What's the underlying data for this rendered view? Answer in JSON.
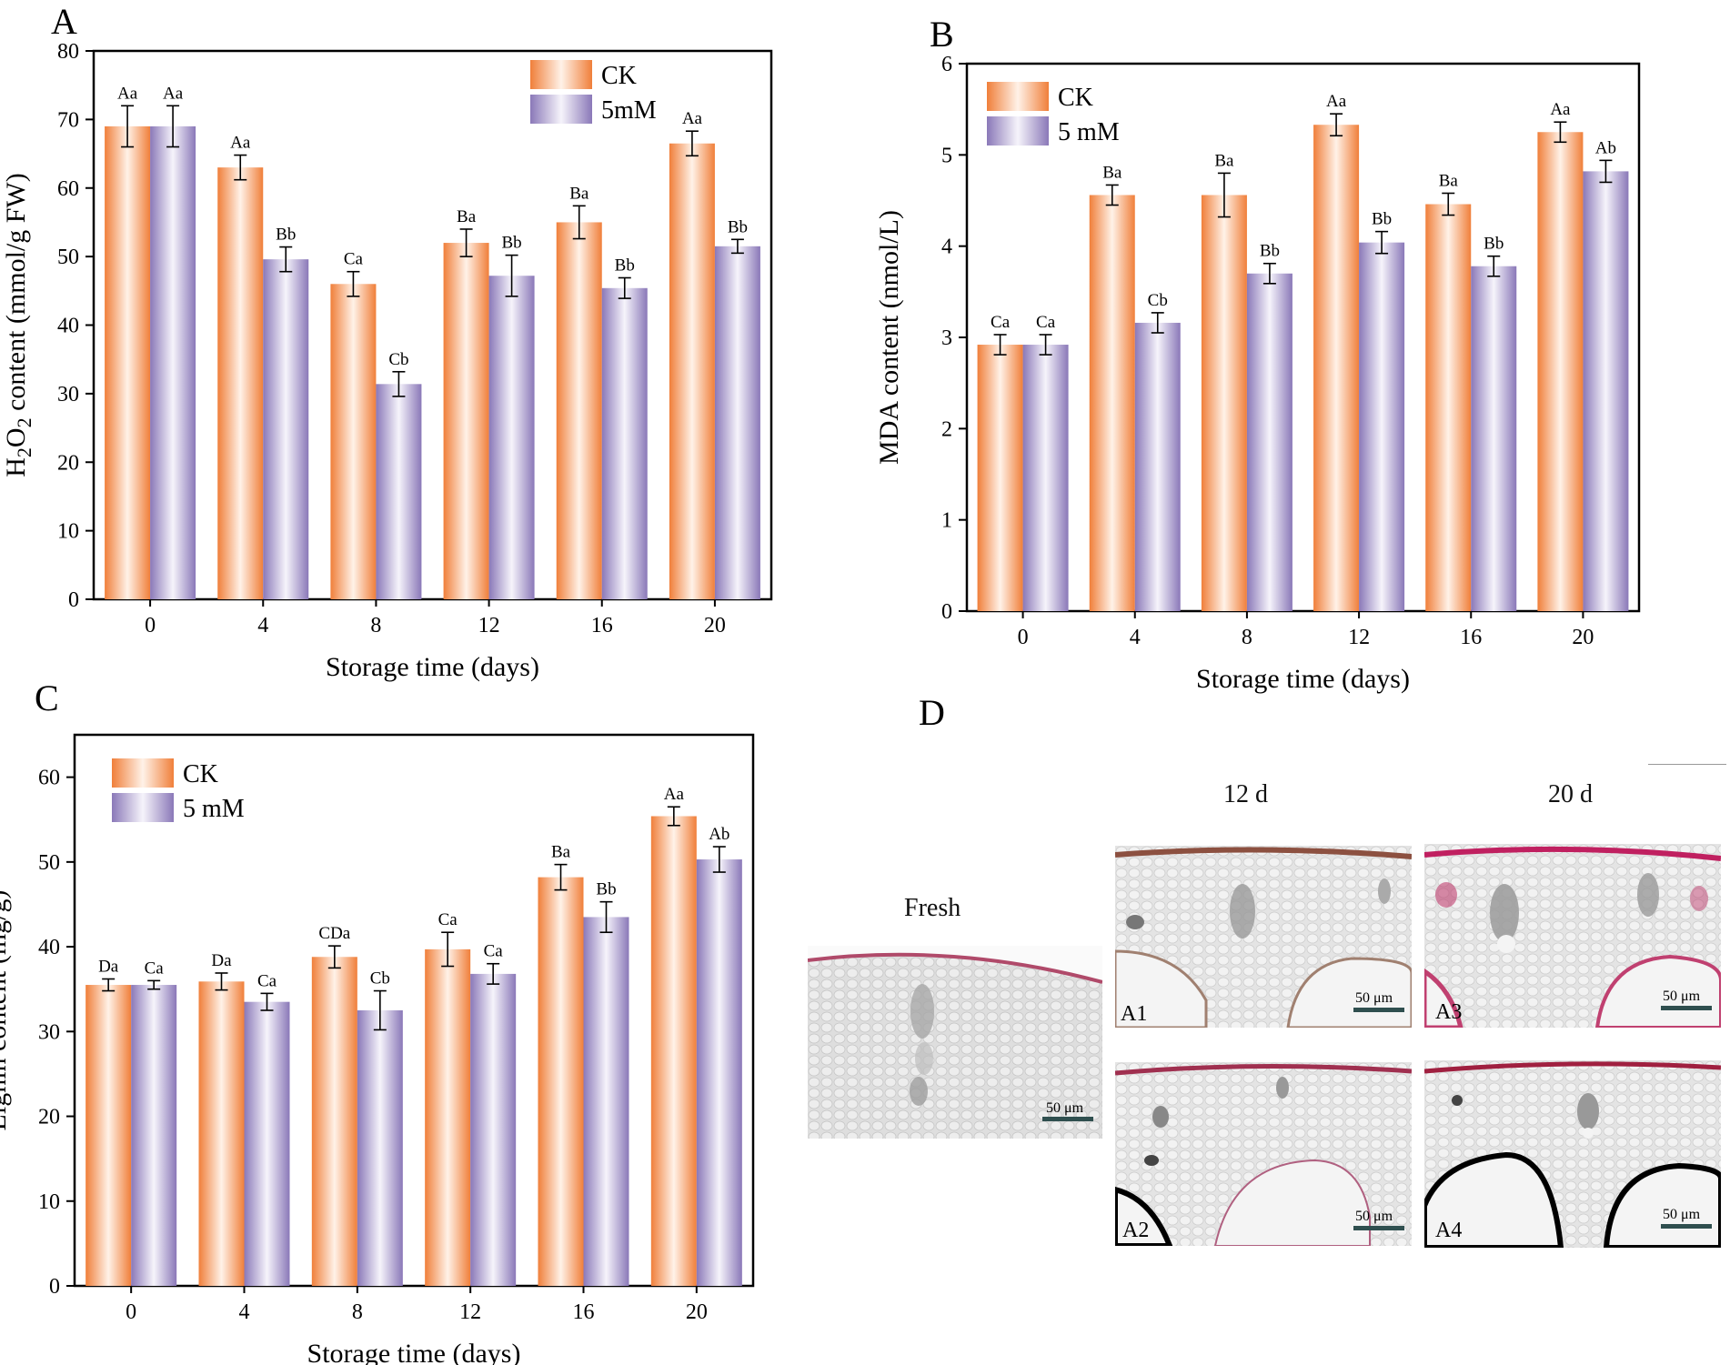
{
  "colors": {
    "ck_dark": "#f07f3a",
    "ck_light": "#fff2e8",
    "mm_dark": "#8a78b8",
    "mm_light": "#f6f4fb",
    "axis": "#000000"
  },
  "chart_data": [
    {
      "panel": "A",
      "type": "bar",
      "categories": [
        "0",
        "4",
        "8",
        "12",
        "16",
        "20"
      ],
      "series": [
        {
          "name": "CK",
          "values": [
            69.0,
            63.0,
            46.0,
            52.0,
            55.0,
            66.5
          ],
          "errors": [
            3.0,
            1.8,
            1.8,
            2.0,
            2.4,
            1.8
          ],
          "labels": [
            "Aa",
            "Aa",
            "Ca",
            "Ba",
            "Ba",
            "Aa"
          ]
        },
        {
          "name": "5mM",
          "values": [
            69.0,
            49.6,
            31.4,
            47.2,
            45.4,
            51.5
          ],
          "errors": [
            3.0,
            1.8,
            1.8,
            3.0,
            1.5,
            1.0
          ],
          "labels": [
            "Aa",
            "Bb",
            "Cb",
            "Bb",
            "Bb",
            "Bb"
          ]
        }
      ],
      "ylim": [
        0,
        80
      ],
      "yticks": [
        0,
        10,
        20,
        30,
        40,
        50,
        60,
        70,
        80
      ],
      "ylabel_pre": "H",
      "ylabel_sub1": "2",
      "ylabel_mid": "O",
      "ylabel_sub2": "2",
      "ylabel_post": " content (mmol/g FW)",
      "xlabel": "Storage time (days)",
      "legend_position": "top-right"
    },
    {
      "panel": "B",
      "type": "bar",
      "categories": [
        "0",
        "4",
        "8",
        "12",
        "16",
        "20"
      ],
      "series": [
        {
          "name": "CK",
          "values": [
            2.92,
            4.56,
            4.56,
            5.33,
            4.46,
            5.25
          ],
          "errors": [
            0.11,
            0.11,
            0.24,
            0.12,
            0.12,
            0.11
          ],
          "labels": [
            "Ca",
            "Ba",
            "Ba",
            "Aa",
            "Ba",
            "Aa"
          ]
        },
        {
          "name": "5 mM",
          "values": [
            2.92,
            3.16,
            3.7,
            4.04,
            3.78,
            4.82
          ],
          "errors": [
            0.11,
            0.11,
            0.11,
            0.12,
            0.11,
            0.12
          ],
          "labels": [
            "Ca",
            "Cb",
            "Bb",
            "Bb",
            "Bb",
            "Ab"
          ]
        }
      ],
      "ylim": [
        0,
        6
      ],
      "yticks": [
        0,
        1,
        2,
        3,
        4,
        5,
        6
      ],
      "ylabel": "MDA content (nmol/L)",
      "xlabel": "Storage time (days)",
      "legend_position": "top-left"
    },
    {
      "panel": "C",
      "type": "bar",
      "categories": [
        "0",
        "4",
        "8",
        "12",
        "16",
        "20"
      ],
      "series": [
        {
          "name": "CK",
          "values": [
            35.5,
            35.9,
            38.8,
            39.7,
            48.2,
            55.4
          ],
          "errors": [
            0.7,
            1.0,
            1.3,
            2.0,
            1.5,
            1.1
          ],
          "labels": [
            "Da",
            "Da",
            "CDa",
            "Ca",
            "Ba",
            "Aa"
          ]
        },
        {
          "name": "5 mM",
          "values": [
            35.5,
            33.5,
            32.5,
            36.8,
            43.5,
            50.3
          ],
          "errors": [
            0.5,
            1.0,
            2.3,
            1.2,
            1.8,
            1.5
          ],
          "labels": [
            "Ca",
            "Ca",
            "Cb",
            "Ca",
            "Bb",
            "Ab"
          ]
        }
      ],
      "ylim": [
        0,
        65
      ],
      "yticks": [
        0,
        10,
        20,
        30,
        40,
        50,
        60
      ],
      "ylabel": "Lignin content (mg/g)",
      "xlabel": "Storage time (days)",
      "legend_position": "top-left"
    }
  ],
  "panels": {
    "a": "A",
    "b": "B",
    "c": "C",
    "d": "D"
  },
  "micrographs": {
    "col_12d": "12 d",
    "col_20d": "20 d",
    "fresh_label": "Fresh",
    "scale_bar": "50 μm",
    "tiles": [
      "A1",
      "A2",
      "A3",
      "A4"
    ]
  }
}
